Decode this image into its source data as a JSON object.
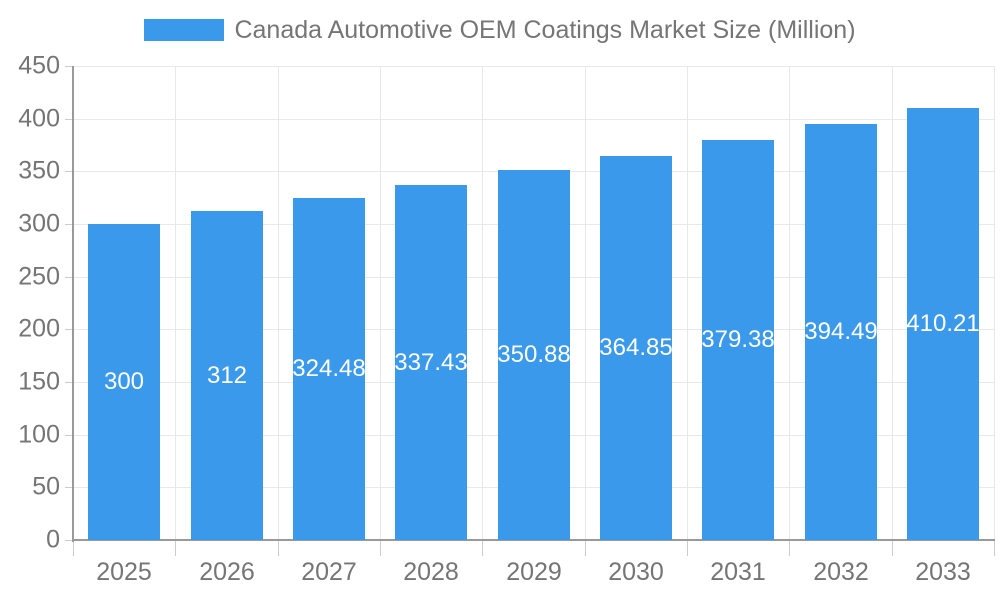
{
  "legend": {
    "swatch_color": "#3B99EC"
  },
  "colors": {
    "background": "#FFFFFF",
    "bar": "#3B99EC",
    "bar_label_text": "#FFFFFF",
    "axis_text": "#757575",
    "title_text": "#757575",
    "axis_line": "#999999",
    "grid_line": "#E8E8E8",
    "tick_line": "#CCCCCC"
  },
  "chart_data": {
    "type": "bar",
    "title": "Canada Automotive OEM Coatings Market Size (Million)",
    "categories": [
      "2025",
      "2026",
      "2027",
      "2028",
      "2029",
      "2030",
      "2031",
      "2032",
      "2033"
    ],
    "values": [
      300,
      312,
      324.48,
      337.43,
      350.88,
      364.85,
      379.38,
      394.49,
      410.21
    ],
    "value_labels": [
      "300",
      "312",
      "324.48",
      "337.43",
      "350.88",
      "364.85",
      "379.38",
      "394.49",
      "410.21"
    ],
    "xlabel": "",
    "ylabel": "",
    "ylim": [
      0,
      450
    ],
    "ytick_step": 50,
    "yticks": [
      0,
      50,
      100,
      150,
      200,
      250,
      300,
      350,
      400,
      450
    ],
    "grid": true,
    "legend_position": "top",
    "value_label_position": "inside-middle"
  }
}
